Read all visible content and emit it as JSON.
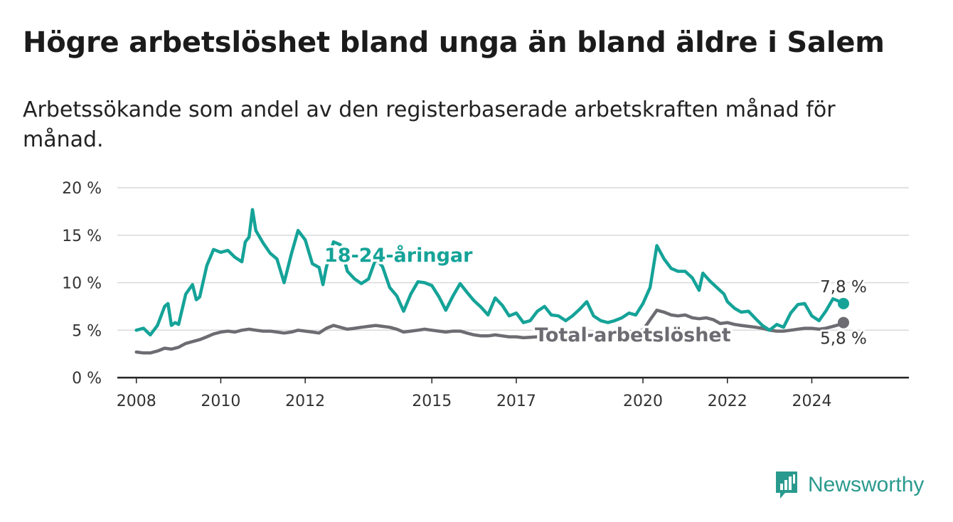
{
  "title": "Högre arbetslöshet bland unga än bland äldre i Salem",
  "subtitle": "Arbetssökande som andel av den registerbaserade arbetskraften månad för månad.",
  "brand": "Newsworthy",
  "colors": {
    "youth": "#15a398",
    "total": "#6d6c72",
    "brand": "#2a9a8e",
    "grid": "#d9d9d9",
    "axis": "#222222"
  },
  "chart_data": {
    "type": "line",
    "ylim": [
      0,
      20
    ],
    "yticks": [
      0,
      5,
      10,
      15,
      20
    ],
    "ytick_labels": [
      "0 %",
      "5 %",
      "10 %",
      "15 %",
      "20 %"
    ],
    "xticks": [
      2008,
      2010,
      2012,
      2015,
      2017,
      2020,
      2022,
      2024
    ],
    "xtick_labels": [
      "2008",
      "2010",
      "2012",
      "2015",
      "2017",
      "2020",
      "2022",
      "2024"
    ],
    "grid": true,
    "series": [
      {
        "name": "18-24-åringar",
        "color": "#15a398",
        "end_label": "7,8 %",
        "points": [
          [
            2008.0,
            5.0
          ],
          [
            2008.17,
            5.2
          ],
          [
            2008.33,
            4.5
          ],
          [
            2008.5,
            5.5
          ],
          [
            2008.67,
            7.5
          ],
          [
            2008.75,
            7.8
          ],
          [
            2008.83,
            5.5
          ],
          [
            2008.92,
            5.8
          ],
          [
            2009.0,
            5.6
          ],
          [
            2009.17,
            8.8
          ],
          [
            2009.33,
            9.8
          ],
          [
            2009.42,
            8.2
          ],
          [
            2009.5,
            8.5
          ],
          [
            2009.67,
            11.8
          ],
          [
            2009.83,
            13.5
          ],
          [
            2010.0,
            13.2
          ],
          [
            2010.17,
            13.4
          ],
          [
            2010.33,
            12.7
          ],
          [
            2010.5,
            12.2
          ],
          [
            2010.58,
            14.3
          ],
          [
            2010.67,
            14.8
          ],
          [
            2010.75,
            17.7
          ],
          [
            2010.83,
            15.5
          ],
          [
            2011.0,
            14.2
          ],
          [
            2011.17,
            13.1
          ],
          [
            2011.33,
            12.5
          ],
          [
            2011.5,
            10.0
          ],
          [
            2011.67,
            13.0
          ],
          [
            2011.83,
            15.5
          ],
          [
            2012.0,
            14.5
          ],
          [
            2012.17,
            12.0
          ],
          [
            2012.33,
            11.6
          ],
          [
            2012.42,
            9.8
          ],
          [
            2012.5,
            11.6
          ],
          [
            2012.67,
            14.3
          ],
          [
            2012.83,
            14.0
          ],
          [
            2013.0,
            11.2
          ],
          [
            2013.17,
            10.4
          ],
          [
            2013.33,
            9.9
          ],
          [
            2013.5,
            10.4
          ],
          [
            2013.67,
            12.5
          ],
          [
            2013.83,
            11.7
          ],
          [
            2014.0,
            9.5
          ],
          [
            2014.17,
            8.6
          ],
          [
            2014.33,
            7.0
          ],
          [
            2014.5,
            8.8
          ],
          [
            2014.67,
            10.1
          ],
          [
            2014.83,
            10.0
          ],
          [
            2015.0,
            9.7
          ],
          [
            2015.17,
            8.5
          ],
          [
            2015.33,
            7.1
          ],
          [
            2015.5,
            8.6
          ],
          [
            2015.67,
            9.9
          ],
          [
            2015.83,
            9.0
          ],
          [
            2016.0,
            8.1
          ],
          [
            2016.17,
            7.4
          ],
          [
            2016.33,
            6.6
          ],
          [
            2016.5,
            8.4
          ],
          [
            2016.67,
            7.6
          ],
          [
            2016.83,
            6.5
          ],
          [
            2017.0,
            6.8
          ],
          [
            2017.17,
            5.8
          ],
          [
            2017.33,
            6.0
          ],
          [
            2017.5,
            7.0
          ],
          [
            2017.67,
            7.5
          ],
          [
            2017.83,
            6.6
          ],
          [
            2018.0,
            6.5
          ],
          [
            2018.17,
            6.0
          ],
          [
            2018.33,
            6.5
          ],
          [
            2018.5,
            7.2
          ],
          [
            2018.67,
            8.0
          ],
          [
            2018.83,
            6.5
          ],
          [
            2019.0,
            6.0
          ],
          [
            2019.17,
            5.8
          ],
          [
            2019.33,
            6.0
          ],
          [
            2019.5,
            6.3
          ],
          [
            2019.67,
            6.8
          ],
          [
            2019.83,
            6.6
          ],
          [
            2020.0,
            7.8
          ],
          [
            2020.17,
            9.5
          ],
          [
            2020.33,
            13.9
          ],
          [
            2020.5,
            12.5
          ],
          [
            2020.67,
            11.5
          ],
          [
            2020.83,
            11.2
          ],
          [
            2021.0,
            11.2
          ],
          [
            2021.17,
            10.5
          ],
          [
            2021.33,
            9.2
          ],
          [
            2021.42,
            11.0
          ],
          [
            2021.58,
            10.2
          ],
          [
            2021.75,
            9.5
          ],
          [
            2021.92,
            8.8
          ],
          [
            2022.0,
            8.0
          ],
          [
            2022.17,
            7.3
          ],
          [
            2022.33,
            6.9
          ],
          [
            2022.5,
            7.0
          ],
          [
            2022.67,
            6.2
          ],
          [
            2022.83,
            5.5
          ],
          [
            2023.0,
            5.0
          ],
          [
            2023.17,
            5.6
          ],
          [
            2023.33,
            5.3
          ],
          [
            2023.5,
            6.8
          ],
          [
            2023.67,
            7.7
          ],
          [
            2023.83,
            7.8
          ],
          [
            2024.0,
            6.5
          ],
          [
            2024.17,
            6.0
          ],
          [
            2024.33,
            7.0
          ],
          [
            2024.5,
            8.3
          ],
          [
            2024.67,
            8.0
          ],
          [
            2024.75,
            7.8
          ]
        ]
      },
      {
        "name": "Total arbetslöshet",
        "color": "#6d6c72",
        "end_label": "5,8 %",
        "points": [
          [
            2008.0,
            2.7
          ],
          [
            2008.17,
            2.6
          ],
          [
            2008.33,
            2.6
          ],
          [
            2008.5,
            2.8
          ],
          [
            2008.67,
            3.1
          ],
          [
            2008.83,
            3.0
          ],
          [
            2009.0,
            3.2
          ],
          [
            2009.17,
            3.6
          ],
          [
            2009.33,
            3.8
          ],
          [
            2009.5,
            4.0
          ],
          [
            2009.67,
            4.3
          ],
          [
            2009.83,
            4.6
          ],
          [
            2010.0,
            4.8
          ],
          [
            2010.17,
            4.9
          ],
          [
            2010.33,
            4.8
          ],
          [
            2010.5,
            5.0
          ],
          [
            2010.67,
            5.1
          ],
          [
            2010.83,
            5.0
          ],
          [
            2011.0,
            4.9
          ],
          [
            2011.17,
            4.9
          ],
          [
            2011.33,
            4.8
          ],
          [
            2011.5,
            4.7
          ],
          [
            2011.67,
            4.8
          ],
          [
            2011.83,
            5.0
          ],
          [
            2012.0,
            4.9
          ],
          [
            2012.17,
            4.8
          ],
          [
            2012.33,
            4.7
          ],
          [
            2012.5,
            5.2
          ],
          [
            2012.67,
            5.5
          ],
          [
            2012.83,
            5.3
          ],
          [
            2013.0,
            5.1
          ],
          [
            2013.17,
            5.2
          ],
          [
            2013.33,
            5.3
          ],
          [
            2013.5,
            5.4
          ],
          [
            2013.67,
            5.5
          ],
          [
            2013.83,
            5.4
          ],
          [
            2014.0,
            5.3
          ],
          [
            2014.17,
            5.1
          ],
          [
            2014.33,
            4.8
          ],
          [
            2014.5,
            4.9
          ],
          [
            2014.67,
            5.0
          ],
          [
            2014.83,
            5.1
          ],
          [
            2015.0,
            5.0
          ],
          [
            2015.17,
            4.9
          ],
          [
            2015.33,
            4.8
          ],
          [
            2015.5,
            4.9
          ],
          [
            2015.67,
            4.9
          ],
          [
            2015.83,
            4.7
          ],
          [
            2016.0,
            4.5
          ],
          [
            2016.17,
            4.4
          ],
          [
            2016.33,
            4.4
          ],
          [
            2016.5,
            4.5
          ],
          [
            2016.67,
            4.4
          ],
          [
            2016.83,
            4.3
          ],
          [
            2017.0,
            4.3
          ],
          [
            2017.17,
            4.2
          ],
          [
            2017.5,
            4.3
          ],
          [
            2017.83,
            4.3
          ],
          [
            2018.0,
            4.4
          ],
          [
            2018.5,
            4.4
          ],
          [
            2019.0,
            4.5
          ],
          [
            2019.5,
            4.7
          ],
          [
            2020.0,
            5.0
          ],
          [
            2020.17,
            6.1
          ],
          [
            2020.33,
            7.1
          ],
          [
            2020.5,
            6.9
          ],
          [
            2020.67,
            6.6
          ],
          [
            2020.83,
            6.5
          ],
          [
            2021.0,
            6.6
          ],
          [
            2021.17,
            6.3
          ],
          [
            2021.33,
            6.2
          ],
          [
            2021.5,
            6.3
          ],
          [
            2021.67,
            6.1
          ],
          [
            2021.83,
            5.7
          ],
          [
            2022.0,
            5.8
          ],
          [
            2022.17,
            5.6
          ],
          [
            2022.33,
            5.5
          ],
          [
            2022.5,
            5.4
          ],
          [
            2022.67,
            5.3
          ],
          [
            2022.83,
            5.2
          ],
          [
            2023.0,
            5.0
          ],
          [
            2023.17,
            4.9
          ],
          [
            2023.33,
            4.9
          ],
          [
            2023.5,
            5.0
          ],
          [
            2023.67,
            5.1
          ],
          [
            2023.83,
            5.2
          ],
          [
            2024.0,
            5.2
          ],
          [
            2024.17,
            5.1
          ],
          [
            2024.33,
            5.2
          ],
          [
            2024.5,
            5.4
          ],
          [
            2024.67,
            5.6
          ],
          [
            2024.75,
            5.8
          ]
        ]
      }
    ]
  }
}
